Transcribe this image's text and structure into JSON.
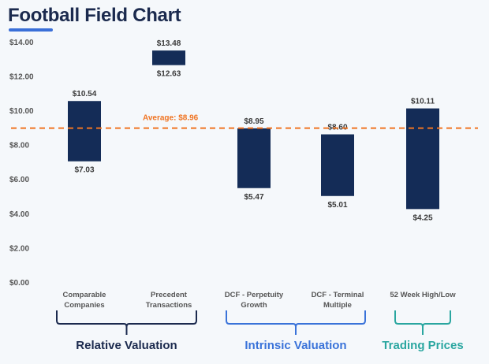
{
  "chart_data": {
    "type": "bar",
    "subtype": "floating-range",
    "title": "Football Field Chart",
    "xlabel": "",
    "ylabel": "",
    "ylim": [
      0,
      14
    ],
    "yticks": [
      "$0.00",
      "$2.00",
      "$4.00",
      "$6.00",
      "$8.00",
      "$10.00",
      "$12.00",
      "$14.00"
    ],
    "categories": [
      {
        "line1": "Comparable",
        "line2": "Companies"
      },
      {
        "line1": "Precedent",
        "line2": "Transactions"
      },
      {
        "line1": "DCF - Perpetuity",
        "line2": "Growth"
      },
      {
        "line1": "DCF - Terminal",
        "line2": "Multiple"
      },
      {
        "line1": "52 Week High/Low",
        "line2": ""
      }
    ],
    "lows": [
      7.03,
      12.63,
      5.47,
      5.01,
      4.25
    ],
    "highs": [
      10.54,
      13.48,
      8.95,
      8.6,
      10.11
    ],
    "low_labels": [
      "$7.03",
      "$12.63",
      "$5.47",
      "$5.01",
      "$4.25"
    ],
    "high_labels": [
      "$10.54",
      "$13.48",
      "$8.95",
      "$8.60",
      "$10.11"
    ],
    "average": {
      "value": 8.96,
      "label": "Average: $8.96"
    },
    "groups": [
      {
        "label": "Relative Valuation",
        "from": 0,
        "to": 1,
        "color": "#1b2a4e"
      },
      {
        "label": "Intrinsic Valuation",
        "from": 2,
        "to": 3,
        "color": "#3a73d9"
      },
      {
        "label": "Trading Prices",
        "from": 4,
        "to": 4,
        "color": "#2aa6a0"
      }
    ],
    "bar_color": "#142c57",
    "average_color": "#f07422",
    "grid": false,
    "legend": "none"
  }
}
